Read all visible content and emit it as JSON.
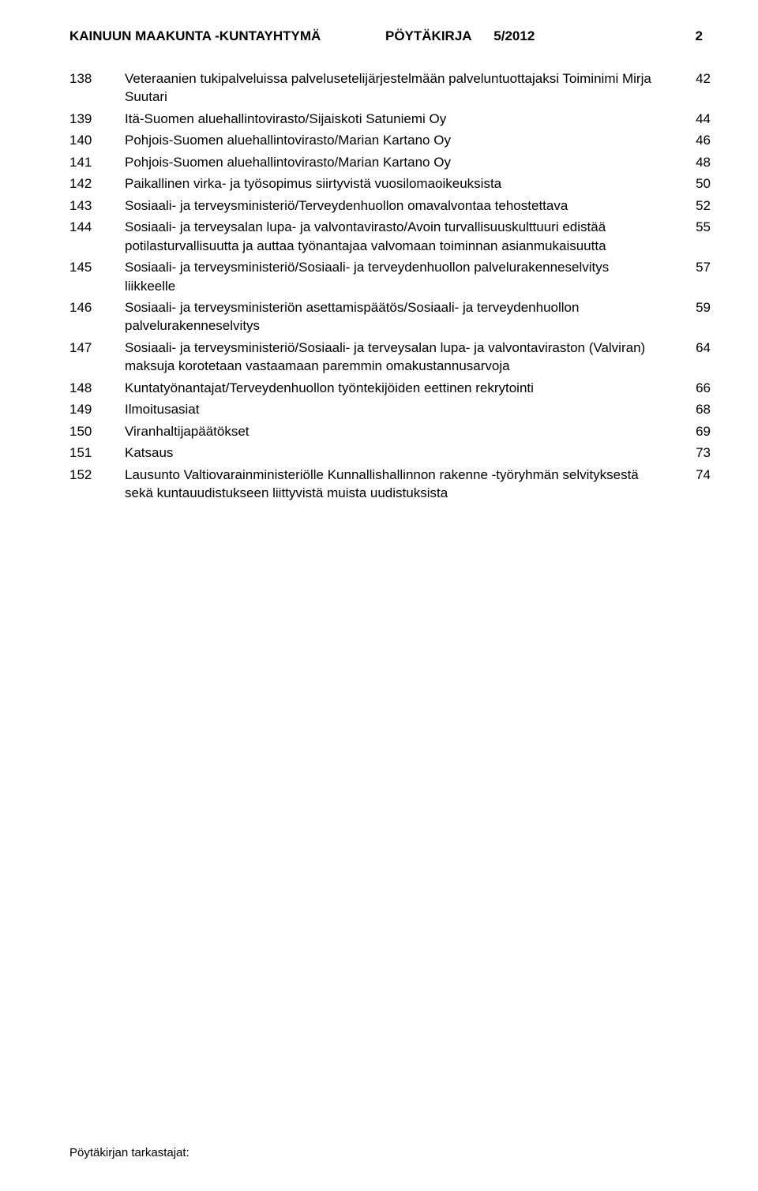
{
  "header": {
    "org": "KAINUUN MAAKUNTA -KUNTAYHTYMÄ",
    "doc": "PÖYTÄKIRJA",
    "issue": "5/2012",
    "page": "2"
  },
  "rows": [
    {
      "num": "138",
      "desc": "Veteraanien tukipalveluissa palvelusetelijärjestelmään palveluntuottajaksi Toiminimi Mirja Suutari",
      "page": "42"
    },
    {
      "num": "139",
      "desc": "Itä-Suomen aluehallintovirasto/Sijaiskoti Satuniemi Oy",
      "page": "44"
    },
    {
      "num": "140",
      "desc": "Pohjois-Suomen aluehallintovirasto/Marian Kartano Oy",
      "page": "46"
    },
    {
      "num": "141",
      "desc": "Pohjois-Suomen aluehallintovirasto/Marian Kartano Oy",
      "page": "48"
    },
    {
      "num": "142",
      "desc": "Paikallinen virka- ja työsopimus siirtyvistä vuosilomaoikeuksista",
      "page": "50"
    },
    {
      "num": "143",
      "desc": "Sosiaali- ja terveysministeriö/Terveydenhuollon omavalvontaa tehostettava",
      "page": "52"
    },
    {
      "num": "144",
      "desc": "Sosiaali- ja terveysalan lupa- ja valvontavirasto/Avoin turvallisuuskulttuuri edistää potilasturvallisuutta ja auttaa työnantajaa valvomaan toiminnan asianmukaisuutta",
      "page": "55"
    },
    {
      "num": "145",
      "desc": "Sosiaali- ja terveysministeriö/Sosiaali- ja terveydenhuollon palvelurakenneselvitys liikkeelle",
      "page": "57"
    },
    {
      "num": "146",
      "desc": "Sosiaali- ja terveysministeriön asettamispäätös/Sosiaali- ja terveydenhuollon palvelurakenneselvitys",
      "page": "59"
    },
    {
      "num": "147",
      "desc": "Sosiaali- ja terveysministeriö/Sosiaali- ja terveysalan lupa- ja valvontaviraston (Valviran) maksuja korotetaan vastaamaan paremmin omakustannusarvoja",
      "page": "64"
    },
    {
      "num": "148",
      "desc": "Kuntatyönantajat/Terveydenhuollon työntekijöiden eettinen rekrytointi",
      "page": "66"
    },
    {
      "num": "149",
      "desc": "Ilmoitusasiat",
      "page": "68"
    },
    {
      "num": "150",
      "desc": "Viranhaltijapäätökset",
      "page": "69"
    },
    {
      "num": "151",
      "desc": "Katsaus",
      "page": "73"
    },
    {
      "num": "152",
      "desc": "Lausunto Valtiovarainministeriölle Kunnallishallinnon rakenne -työryhmän selvityksestä sekä kuntauudistukseen liittyvistä muista uudistuksista",
      "page": "74"
    }
  ],
  "footer": "Pöytäkirjan tarkastajat:"
}
